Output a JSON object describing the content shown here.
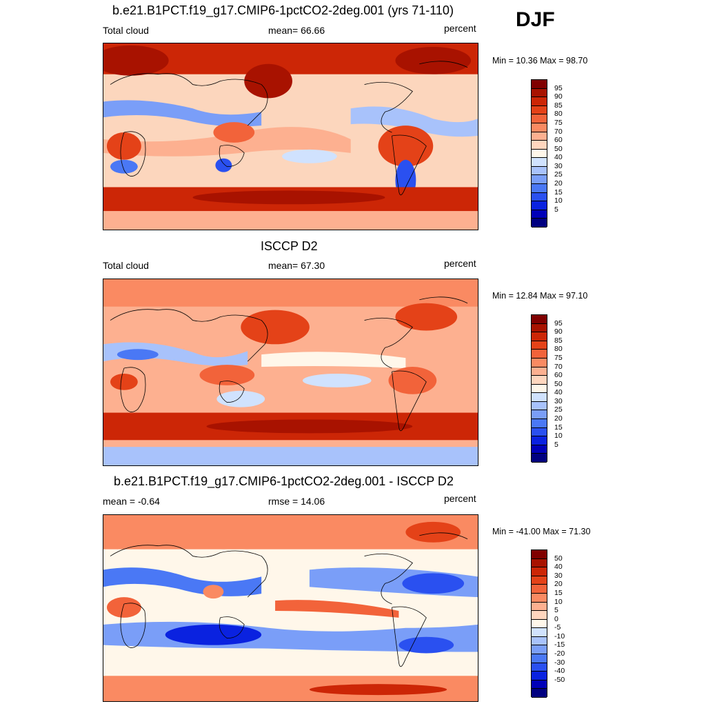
{
  "season": "DJF",
  "palettes": {
    "abs": [
      "#000080",
      "#0000b8",
      "#0a22e0",
      "#2a50f0",
      "#4a78f5",
      "#7a9ef8",
      "#a8c2fb",
      "#d0e2fe",
      "#fff7ea",
      "#ffd6be",
      "#fdb090",
      "#fa8a62",
      "#f2633a",
      "#e44218",
      "#cc2606",
      "#a81200",
      "#800000"
    ],
    "diff": [
      "#000080",
      "#0000b8",
      "#0a22e0",
      "#2a50f0",
      "#4a78f5",
      "#7a9ef8",
      "#a8c2fb",
      "#d0e2fe",
      "#fff7ea",
      "#ffd6be",
      "#fdb090",
      "#fa8a62",
      "#f2633a",
      "#e44218",
      "#cc2606",
      "#a81200",
      "#800000"
    ]
  },
  "panels": [
    {
      "title": "b.e21.B1PCT.f19_g17.CMIP6-1pctCO2-2deg.001 (yrs 71-110)",
      "left_label": "Total cloud",
      "mid_label": "mean=  66.66",
      "units": "percent",
      "minmax": "Min =  10.36 Max =  98.70",
      "levels": [
        "95",
        "90",
        "85",
        "80",
        "75",
        "70",
        "60",
        "50",
        "40",
        "30",
        "25",
        "20",
        "15",
        "10",
        "5"
      ],
      "palette": "abs"
    },
    {
      "title": "ISCCP D2",
      "left_label": "Total cloud",
      "mid_label": "mean=  67.30",
      "units": "percent",
      "minmax": "Min =  12.84 Max =  97.10",
      "levels": [
        "95",
        "90",
        "85",
        "80",
        "75",
        "70",
        "60",
        "50",
        "40",
        "30",
        "25",
        "20",
        "15",
        "10",
        "5"
      ],
      "palette": "abs"
    },
    {
      "title": "b.e21.B1PCT.f19_g17.CMIP6-1pctCO2-2deg.001 - ISCCP D2",
      "left_label": "mean =  -0.64",
      "mid_label": "rmse =  14.06",
      "units": "percent",
      "minmax": "Min = -41.00 Max =  71.30",
      "levels": [
        "50",
        "40",
        "30",
        "20",
        "15",
        "10",
        "5",
        "0",
        "-5",
        "-10",
        "-15",
        "-20",
        "-30",
        "-40",
        "-50"
      ],
      "palette": "diff"
    }
  ]
}
